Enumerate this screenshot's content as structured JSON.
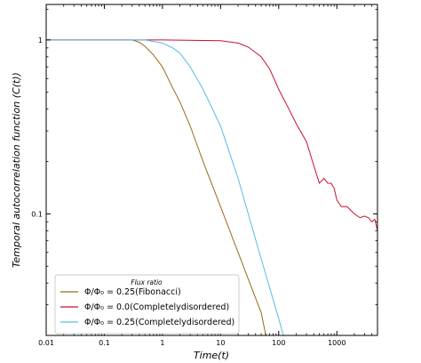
{
  "chart_data": {
    "type": "line",
    "xscale": "log",
    "yscale": "log",
    "xlim": [
      0.01,
      5000
    ],
    "ylim": [
      0.02,
      1.6
    ],
    "xlabel": "Time(t)",
    "ylabel": "Temporal autocorrelation function (C(t))",
    "xticks": [
      0.01,
      0.1,
      1,
      10,
      100,
      1000
    ],
    "xtick_labels": [
      "0.01",
      "0.1",
      "1",
      "10",
      "100",
      "1000"
    ],
    "yticks": [
      0.1,
      1
    ],
    "ytick_labels": [
      "0.1",
      "1"
    ],
    "grid": false,
    "legend": {
      "title": "Flux ratio",
      "placement": "bottom-left"
    },
    "series": [
      {
        "name": "Φ/Φ₀ = 0.25(Fibonacci)",
        "color": "#9a6a1c",
        "x": [
          0.01,
          0.1,
          0.3,
          0.4,
          0.5,
          0.7,
          1,
          1.5,
          2,
          3,
          5,
          10,
          20,
          50,
          60
        ],
        "y": [
          1.0,
          1.0,
          1.0,
          0.97,
          0.92,
          0.82,
          0.7,
          0.53,
          0.44,
          0.32,
          0.2,
          0.11,
          0.06,
          0.027,
          0.02
        ]
      },
      {
        "name": "Φ/Φ₀ = 0.0(Completelydisordered)",
        "color": "#c8102e",
        "x": [
          0.01,
          0.1,
          1,
          10,
          20,
          30,
          50,
          70,
          100,
          150,
          200,
          300,
          400,
          500,
          600,
          700,
          800,
          900,
          1000,
          1200,
          1500,
          2000,
          2500,
          3000,
          3500,
          4000,
          4500,
          5000
        ],
        "y": [
          1.0,
          1.0,
          1.0,
          0.99,
          0.96,
          0.91,
          0.8,
          0.68,
          0.52,
          0.4,
          0.33,
          0.26,
          0.19,
          0.15,
          0.16,
          0.15,
          0.15,
          0.14,
          0.12,
          0.11,
          0.11,
          0.1,
          0.095,
          0.097,
          0.095,
          0.09,
          0.093,
          0.08
        ]
      },
      {
        "name": "Φ/Φ₀ = 0.25(Completelydisordered)",
        "color": "#55bde6",
        "x": [
          0.01,
          0.1,
          0.5,
          1,
          1.5,
          2,
          3,
          5,
          10,
          20,
          50,
          100,
          120
        ],
        "y": [
          1.0,
          1.0,
          1.0,
          0.96,
          0.9,
          0.84,
          0.7,
          0.52,
          0.32,
          0.16,
          0.055,
          0.025,
          0.02
        ]
      }
    ]
  }
}
